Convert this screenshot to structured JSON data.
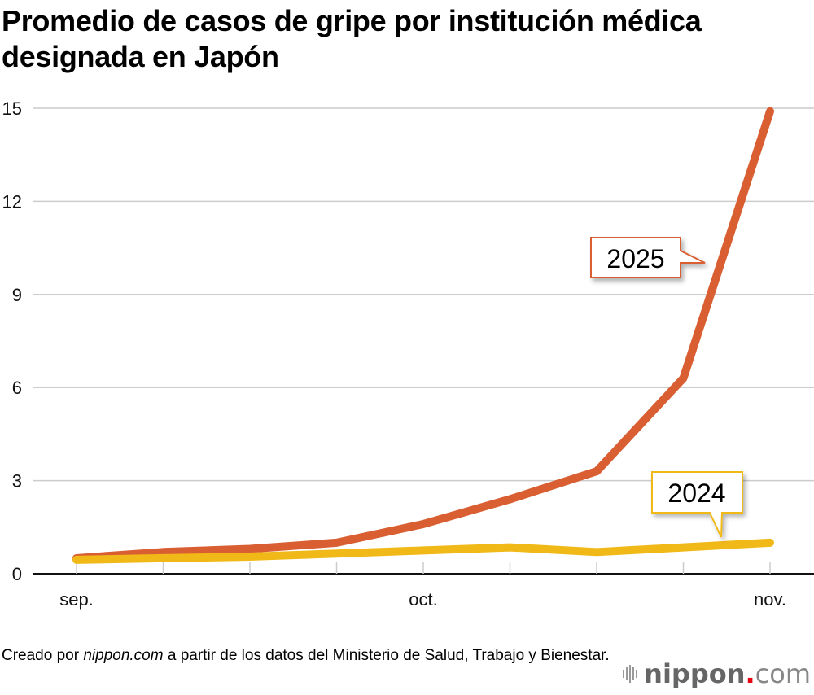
{
  "title": "Promedio de casos de gripe por institución médica designada en Japón",
  "footer": {
    "prefix": "Creado por ",
    "source_italic": "nippon.com",
    "suffix": " a partir de los datos del Ministerio de Salud, Trabajo y Bienestar."
  },
  "logo": {
    "name": "nippon",
    "dot": ".",
    "tld": "com"
  },
  "chart_data": {
    "type": "line",
    "title": "Promedio de casos de gripe por institución médica designada en Japón",
    "xlabel": "",
    "ylabel": "",
    "x_tick_labels": [
      {
        "index": 0,
        "label": "sep."
      },
      {
        "index": 4,
        "label": "oct."
      },
      {
        "index": 8,
        "label": "nov."
      }
    ],
    "x_count": 9,
    "yticks": [
      0,
      3,
      6,
      9,
      12,
      15
    ],
    "ylim": [
      0,
      15
    ],
    "grid": true,
    "series": [
      {
        "name": "2025",
        "color": "#d95f33",
        "values": [
          0.5,
          0.7,
          0.8,
          1.0,
          1.6,
          2.4,
          3.3,
          6.3,
          14.9
        ],
        "label_anchor_index": 7.3
      },
      {
        "name": "2024",
        "color": "#f0b918",
        "values": [
          0.45,
          0.5,
          0.55,
          0.65,
          0.75,
          0.85,
          0.7,
          0.85,
          1.0
        ],
        "label_anchor_index": 7.5
      }
    ]
  }
}
